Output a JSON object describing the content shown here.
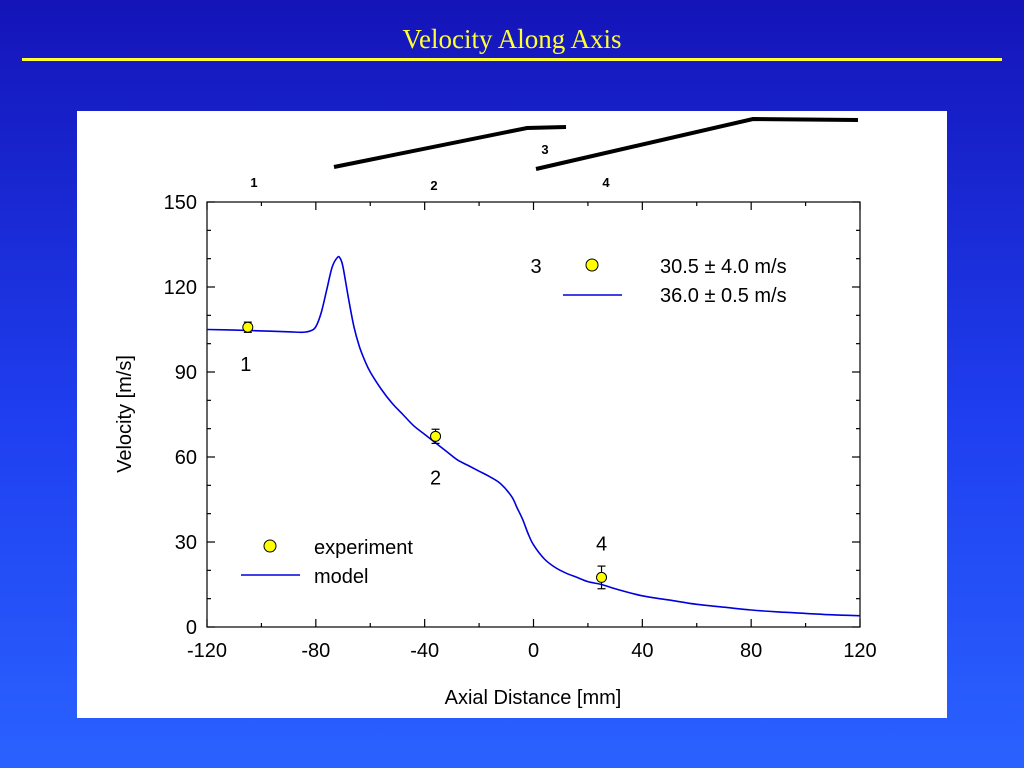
{
  "slide": {
    "title": "Velocity Along Axis"
  },
  "colors": {
    "model": "#0000dd",
    "experiment_fill": "#ffff00",
    "title": "#ffff33"
  },
  "chart_data": {
    "type": "line",
    "xlabel": "Axial Distance  [mm]",
    "ylabel": "Velocity  [m/s]",
    "xlim": [
      -120,
      120
    ],
    "ylim": [
      0,
      150
    ],
    "xticks": [
      -120,
      -80,
      -40,
      0,
      40,
      80,
      120
    ],
    "yticks": [
      0,
      30,
      60,
      90,
      120,
      150
    ],
    "grid": false,
    "legend": {
      "placement": "bottom-left",
      "entries": [
        {
          "marker": "circle",
          "label": "experiment"
        },
        {
          "marker": "line",
          "label": "model"
        }
      ]
    },
    "point3_legend": {
      "label": "3",
      "entries": [
        {
          "marker": "circle",
          "label": "30.5 ± 4.0 m/s"
        },
        {
          "marker": "line",
          "label": "36.0 ± 0.5 m/s"
        }
      ]
    },
    "series": [
      {
        "name": "model",
        "x": [
          -120,
          -110,
          -100,
          -90,
          -85,
          -82,
          -80,
          -78,
          -76,
          -74,
          -72,
          -71,
          -70,
          -68,
          -66,
          -64,
          -62,
          -60,
          -56,
          -52,
          -48,
          -44,
          -40,
          -36,
          -32,
          -28,
          -24,
          -20,
          -16,
          -12,
          -8,
          -6,
          -4,
          -2,
          0,
          4,
          8,
          12,
          16,
          20,
          25,
          30,
          40,
          50,
          60,
          70,
          80,
          90,
          100,
          110,
          120
        ],
        "y": [
          105,
          104.8,
          104.5,
          104.2,
          104,
          104.5,
          106,
          111,
          119,
          127,
          130.5,
          130,
          127,
          116,
          106,
          99,
          94,
          90,
          84,
          79,
          75,
          71,
          68,
          65,
          62,
          59,
          57,
          55,
          53,
          50.5,
          46,
          42,
          38,
          33,
          29,
          24,
          21,
          19,
          17.5,
          16,
          15,
          13.5,
          11,
          9.5,
          8,
          7,
          6,
          5.3,
          4.8,
          4.3,
          4
        ]
      },
      {
        "name": "experiment",
        "x": [
          -105,
          -36,
          25
        ],
        "y": [
          105.8,
          67.3,
          17.5
        ],
        "err": [
          1.8,
          2.5,
          4.0
        ],
        "labels": [
          "1",
          "2",
          "4"
        ]
      }
    ],
    "schematic": {
      "stage_labels": [
        "1",
        "2",
        "3",
        "4"
      ]
    }
  }
}
